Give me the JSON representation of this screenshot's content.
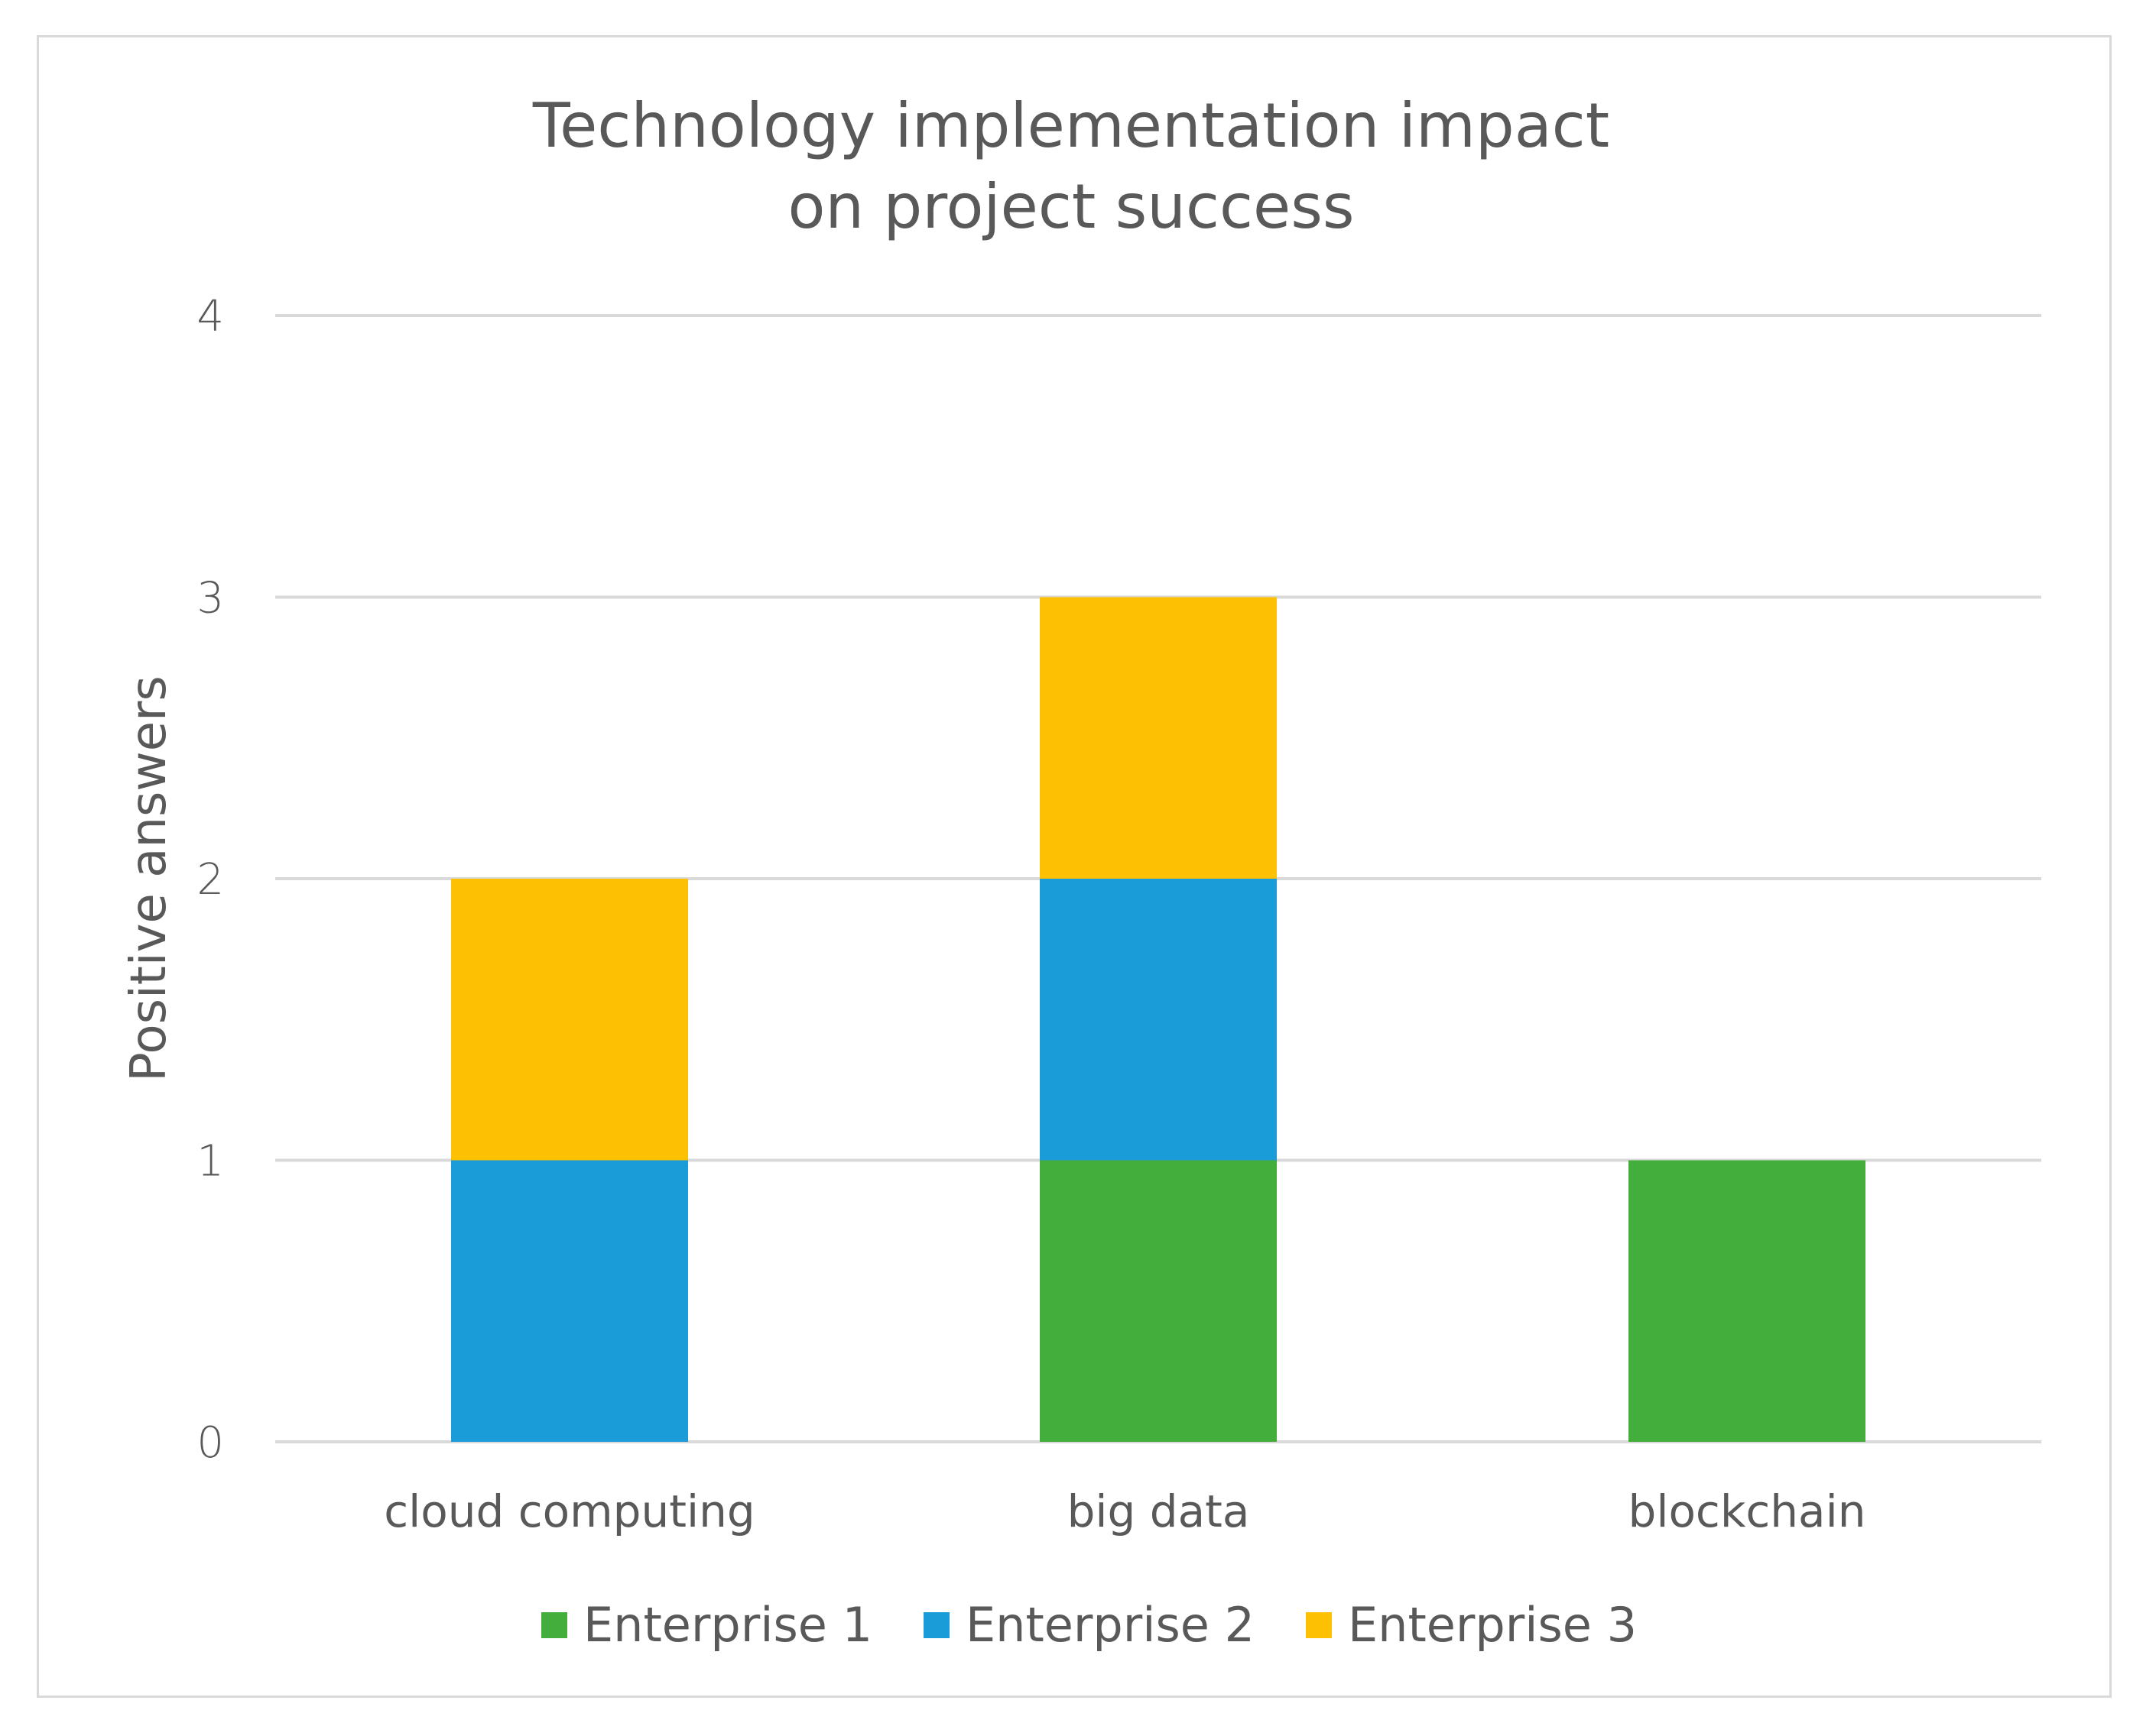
{
  "chart_data": {
    "type": "bar",
    "stacked": true,
    "title": [
      "Technology implementation impact",
      "on project success"
    ],
    "xlabel": "",
    "ylabel": "Positive answers",
    "ylim": [
      0,
      4
    ],
    "yticks": [
      "0",
      "1",
      "2",
      "3",
      "4"
    ],
    "grid": true,
    "legend_position": "bottom",
    "categories": [
      "cloud computing",
      "big data",
      "blockchain"
    ],
    "series": [
      {
        "name": "Enterprise 1",
        "color": "#43ae3c",
        "values": [
          0,
          1,
          1
        ]
      },
      {
        "name": "Enterprise 2",
        "color": "#199cd8",
        "values": [
          1,
          1,
          0
        ]
      },
      {
        "name": "Enterprise 3",
        "color": "#fdc003",
        "values": [
          1,
          1,
          0
        ]
      }
    ]
  }
}
